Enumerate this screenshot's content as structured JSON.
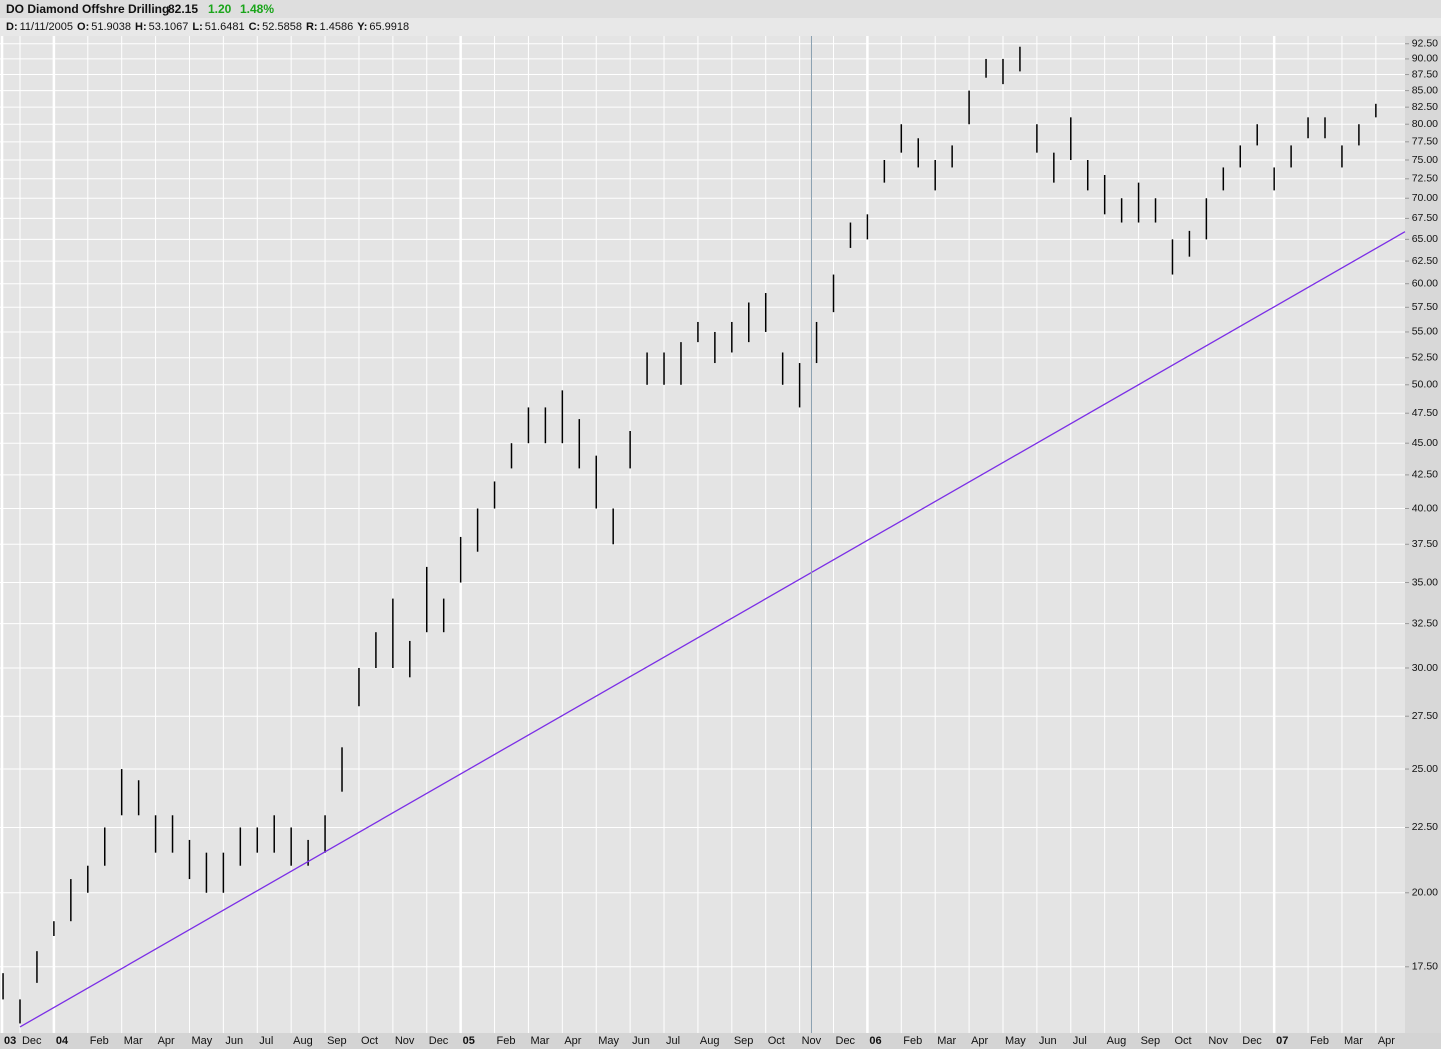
{
  "header": {
    "symbol": "DO Diamond Offshre Drilling",
    "price": "82.15",
    "change": "1.20",
    "change_pct": "1.48%",
    "info": [
      {
        "label": "D:",
        "value": "11/11/2005"
      },
      {
        "label": "O:",
        "value": "51.9038"
      },
      {
        "label": "H:",
        "value": "53.1067"
      },
      {
        "label": "L:",
        "value": "51.6481"
      },
      {
        "label": "C:",
        "value": "52.5858"
      },
      {
        "label": "R:",
        "value": "1.4586"
      },
      {
        "label": "Y:",
        "value": "65.9918"
      }
    ]
  },
  "chart_data": {
    "type": "ohlc",
    "color": "#000000",
    "log_scale": true,
    "grid": true,
    "x": [
      -0.5,
      0,
      0.5,
      1,
      1.5,
      2,
      2.5,
      3,
      3.5,
      4,
      4.5,
      5,
      5.5,
      6,
      6.5,
      7,
      7.5,
      8,
      8.5,
      9,
      9.5,
      10,
      10.5,
      11,
      11.5,
      12,
      12.5,
      13,
      13.5,
      14,
      14.5,
      15,
      15.5,
      16,
      16.5,
      17,
      17.5,
      18,
      18.5,
      19,
      19.5,
      20,
      20.5,
      21,
      21.5,
      22,
      22.5,
      23,
      23.5,
      24,
      24.5,
      25,
      25.5,
      26,
      26.5,
      27,
      27.5,
      28,
      28.5,
      29,
      29.5,
      30,
      30.5,
      31,
      31.5,
      32,
      32.5,
      33,
      33.5,
      34,
      34.5,
      35,
      35.5,
      36,
      36.5,
      37,
      37.5,
      38,
      38.5,
      39,
      39.5,
      40
    ],
    "high": [
      17.3,
      16.5,
      18,
      19,
      20.5,
      21,
      22.5,
      25,
      24.5,
      23,
      23,
      22,
      21.5,
      21.5,
      22.5,
      22.5,
      23,
      22.5,
      22,
      23,
      26,
      30,
      32,
      34,
      31.5,
      36,
      34,
      38,
      40,
      42,
      45,
      48,
      48,
      49.5,
      47,
      44,
      40,
      46,
      53,
      53,
      54,
      56,
      55,
      56,
      58,
      59,
      53,
      52,
      56,
      61,
      67,
      68,
      75,
      80,
      78,
      75,
      77,
      85,
      90,
      90,
      92,
      80,
      76,
      81,
      75,
      73,
      70,
      72,
      70,
      65,
      66,
      70,
      74,
      77,
      80,
      74,
      77,
      81,
      81,
      77,
      80,
      83
    ],
    "low": [
      16.5,
      15.8,
      17,
      18.5,
      19,
      20,
      21,
      23,
      23,
      21.5,
      21.5,
      20.5,
      20,
      20,
      21,
      21.5,
      21.5,
      21,
      21,
      21.5,
      24,
      28,
      30,
      30,
      29.5,
      32,
      32,
      35,
      37,
      40,
      43,
      45,
      45,
      45,
      43,
      40,
      37.5,
      43,
      50,
      50,
      50,
      54,
      52,
      53,
      54,
      55,
      50,
      48,
      52,
      57,
      64,
      65,
      72,
      76,
      74,
      71,
      74,
      80,
      87,
      86,
      88,
      76,
      72,
      75,
      71,
      68,
      67,
      67,
      67,
      61,
      63,
      65,
      71,
      74,
      77,
      71,
      74,
      78,
      78,
      74,
      77,
      81
    ],
    "xlim": [
      -0.59,
      40.86
    ],
    "xticks": [
      {
        "value": -0.53,
        "label": "03"
      },
      {
        "value": 0,
        "label": "Dec"
      },
      {
        "value": 1,
        "label": "04"
      },
      {
        "value": 2,
        "label": "Feb"
      },
      {
        "value": 3,
        "label": "Mar"
      },
      {
        "value": 4,
        "label": "Apr"
      },
      {
        "value": 5,
        "label": "May"
      },
      {
        "value": 6,
        "label": "Jun"
      },
      {
        "value": 7,
        "label": "Jul"
      },
      {
        "value": 8,
        "label": "Aug"
      },
      {
        "value": 9,
        "label": "Sep"
      },
      {
        "value": 10,
        "label": "Oct"
      },
      {
        "value": 11,
        "label": "Nov"
      },
      {
        "value": 12,
        "label": "Dec"
      },
      {
        "value": 13,
        "label": "05"
      },
      {
        "value": 14,
        "label": "Feb"
      },
      {
        "value": 15,
        "label": "Mar"
      },
      {
        "value": 16,
        "label": "Apr"
      },
      {
        "value": 17,
        "label": "May"
      },
      {
        "value": 18,
        "label": "Jun"
      },
      {
        "value": 19,
        "label": "Jul"
      },
      {
        "value": 20,
        "label": "Aug"
      },
      {
        "value": 21,
        "label": "Sep"
      },
      {
        "value": 22,
        "label": "Oct"
      },
      {
        "value": 23,
        "label": "Nov"
      },
      {
        "value": 24,
        "label": "Dec"
      },
      {
        "value": 25,
        "label": "06"
      },
      {
        "value": 26,
        "label": "Feb"
      },
      {
        "value": 27,
        "label": "Mar"
      },
      {
        "value": 28,
        "label": "Apr"
      },
      {
        "value": 29,
        "label": "May"
      },
      {
        "value": 30,
        "label": "Jun"
      },
      {
        "value": 31,
        "label": "Jul"
      },
      {
        "value": 32,
        "label": "Aug"
      },
      {
        "value": 33,
        "label": "Sep"
      },
      {
        "value": 34,
        "label": "Oct"
      },
      {
        "value": 35,
        "label": "Nov"
      },
      {
        "value": 36,
        "label": "Dec"
      },
      {
        "value": 37,
        "label": "07"
      },
      {
        "value": 38,
        "label": "Feb"
      },
      {
        "value": 39,
        "label": "Mar"
      },
      {
        "value": 40,
        "label": "Apr"
      }
    ],
    "ylim": [
      15.53,
      93.8
    ],
    "yticks": [
      {
        "value": 17.5,
        "label": "17.50"
      },
      {
        "value": 20,
        "label": "20.00"
      },
      {
        "value": 22.5,
        "label": "22.50"
      },
      {
        "value": 25,
        "label": "25.00"
      },
      {
        "value": 27.5,
        "label": "27.50"
      },
      {
        "value": 30,
        "label": "30.00"
      },
      {
        "value": 32.5,
        "label": "32.50"
      },
      {
        "value": 35,
        "label": "35.00"
      },
      {
        "value": 37.5,
        "label": "37.50"
      },
      {
        "value": 40,
        "label": "40.00"
      },
      {
        "value": 42.5,
        "label": "42.50"
      },
      {
        "value": 45,
        "label": "45.00"
      },
      {
        "value": 47.5,
        "label": "47.50"
      },
      {
        "value": 50,
        "label": "50.00"
      },
      {
        "value": 52.5,
        "label": "52.50"
      },
      {
        "value": 55,
        "label": "55.00"
      },
      {
        "value": 57.5,
        "label": "57.50"
      },
      {
        "value": 60,
        "label": "60.00"
      },
      {
        "value": 62.5,
        "label": "62.50"
      },
      {
        "value": 65,
        "label": "65.00"
      },
      {
        "value": 67.5,
        "label": "67.50"
      },
      {
        "value": 70,
        "label": "70.00"
      },
      {
        "value": 72.5,
        "label": "72.50"
      },
      {
        "value": 75,
        "label": "75.00"
      },
      {
        "value": 77.5,
        "label": "77.50"
      },
      {
        "value": 80,
        "label": "80.00"
      },
      {
        "value": 82.5,
        "label": "82.50"
      },
      {
        "value": 85,
        "label": "85.00"
      },
      {
        "value": 87.5,
        "label": "87.50"
      },
      {
        "value": 90,
        "label": "90.00"
      },
      {
        "value": 92.5,
        "label": "92.50"
      }
    ],
    "trendline": {
      "x": [
        0,
        40.86
      ],
      "values": [
        15.7,
        65.9
      ],
      "color": "#7b2ee6"
    },
    "cursor_x": 23.35
  }
}
